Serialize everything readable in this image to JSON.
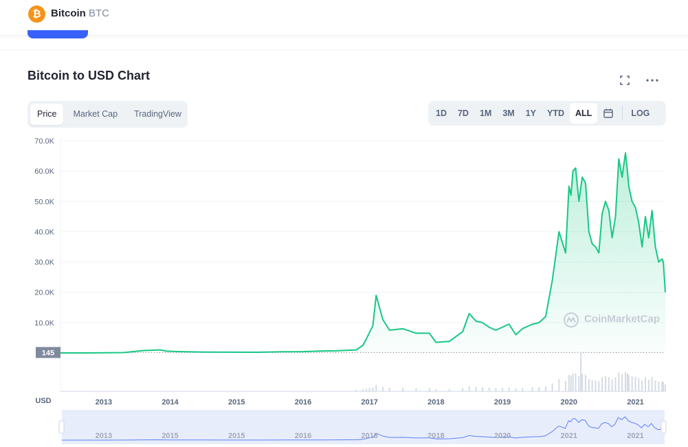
{
  "header": {
    "coin_name": "Bitcoin",
    "coin_symbol": "BTC",
    "logo_glyph": "₿",
    "logo_color": "#f7931a"
  },
  "chart_header": {
    "title": "Bitcoin to USD Chart"
  },
  "view_tabs": [
    {
      "label": "Price",
      "active": true
    },
    {
      "label": "Market Cap",
      "active": false
    },
    {
      "label": "TradingView",
      "active": false
    }
  ],
  "range_tabs": [
    {
      "label": "1D",
      "active": false
    },
    {
      "label": "7D",
      "active": false
    },
    {
      "label": "1M",
      "active": false
    },
    {
      "label": "3M",
      "active": false
    },
    {
      "label": "1Y",
      "active": false
    },
    {
      "label": "YTD",
      "active": false
    },
    {
      "label": "ALL",
      "active": true
    }
  ],
  "log_label": "LOG",
  "icons": {
    "expand": "expand-icon",
    "more": "more-icon",
    "calendar": "calendar-icon"
  },
  "watermark": "CoinMarketCap",
  "colors": {
    "line": "#16c784",
    "accent": "#3861fb",
    "nav_line": "#3861fb"
  },
  "chart_data": {
    "type": "area",
    "ylabel": "USD",
    "y_ticks": [
      "70.0K",
      "60.0K",
      "50.0K",
      "40.0K",
      "30.0K",
      "20.0K",
      "10.0K"
    ],
    "y_tick_values": [
      70000,
      60000,
      50000,
      40000,
      30000,
      20000,
      10000
    ],
    "ylim": [
      0,
      70000
    ],
    "baseline_label": "145",
    "baseline_value": 145,
    "x_ticks": [
      "2013",
      "2014",
      "2015",
      "2016",
      "2017",
      "2018",
      "2019",
      "2020",
      "2021"
    ],
    "x_tick_values": [
      2013.0,
      2014.0,
      2015.0,
      2016.0,
      2017.0,
      2018.0,
      2019.0,
      2020.0,
      2021.0
    ],
    "xlim": [
      2012.35,
      2021.45
    ],
    "nav_x_ticks": [
      "2013",
      "2015",
      "2015",
      "2016",
      "2018",
      "2018",
      "2020",
      "2021",
      "2021"
    ],
    "series": [
      {
        "x": [
          2012.35,
          2012.6,
          2012.9,
          2013.3,
          2013.6,
          2013.85,
          2013.95,
          2014.1,
          2014.5,
          2014.9,
          2015.3,
          2015.7,
          2016.0,
          2016.3,
          2016.5,
          2016.8,
          2016.9,
          2016.95,
          2017.0,
          2017.05,
          2017.1,
          2017.2,
          2017.3,
          2017.5,
          2017.7,
          2017.9,
          2018.0,
          2018.2,
          2018.4,
          2018.5,
          2018.6,
          2018.7,
          2018.8,
          2018.9,
          2019.0,
          2019.1,
          2019.2,
          2019.3,
          2019.45,
          2019.55,
          2019.65,
          2019.75,
          2019.85,
          2019.95,
          2020.0,
          2020.03,
          2020.06,
          2020.1,
          2020.15,
          2020.2,
          2020.25,
          2020.3,
          2020.35,
          2020.4,
          2020.45,
          2020.5,
          2020.55,
          2020.6,
          2020.65,
          2020.7,
          2020.75,
          2020.8,
          2020.85,
          2020.88,
          2020.9,
          2020.95,
          2021.0,
          2021.05,
          2021.1,
          2021.15,
          2021.2,
          2021.25,
          2021.3,
          2021.35,
          2021.4,
          2021.42,
          2021.45
        ],
        "y": [
          5,
          10,
          13,
          120,
          800,
          1000,
          600,
          450,
          300,
          250,
          230,
          400,
          430,
          650,
          700,
          1000,
          2500,
          4500,
          6800,
          9000,
          19000,
          11000,
          7500,
          8000,
          6500,
          6500,
          3500,
          3800,
          7000,
          13000,
          10500,
          10000,
          8500,
          7500,
          8500,
          9500,
          6000,
          8000,
          9500,
          10000,
          12000,
          24000,
          40000,
          33000,
          55000,
          52000,
          60000,
          61000,
          50000,
          58000,
          56000,
          40000,
          36000,
          35000,
          33000,
          46000,
          50000,
          47000,
          38000,
          45000,
          64000,
          58000,
          66000,
          60000,
          55000,
          50000,
          48000,
          43000,
          35000,
          45000,
          38000,
          47000,
          35000,
          30000,
          31000,
          30000,
          20000
        ]
      }
    ]
  }
}
